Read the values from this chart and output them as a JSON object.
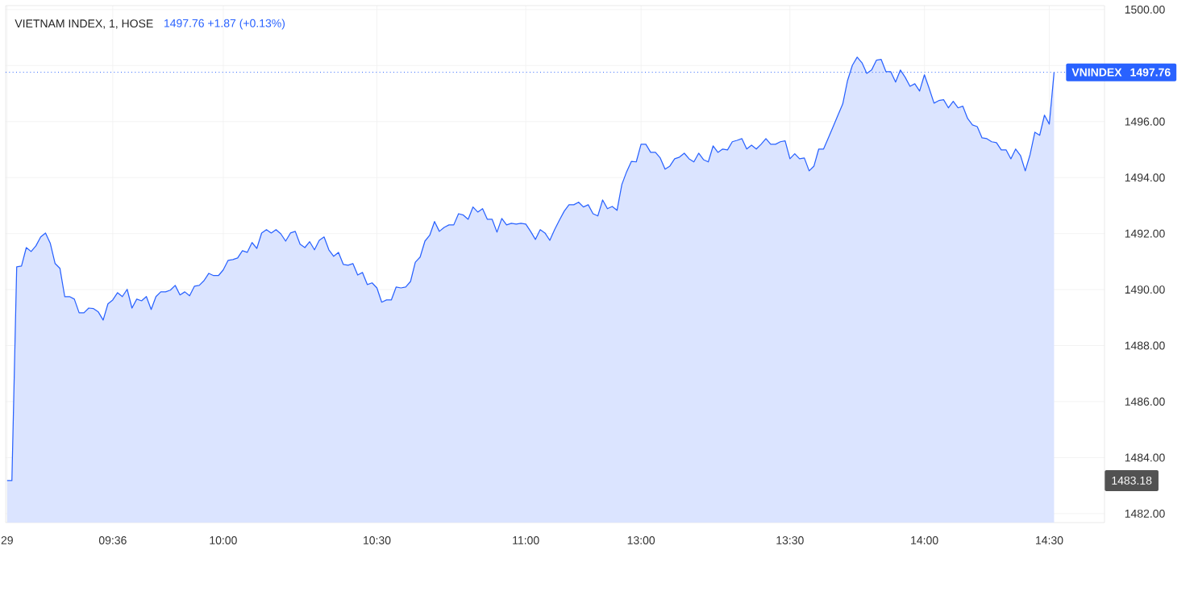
{
  "chart_data": {
    "type": "area",
    "title": "VIETNAM INDEX, 1, HOSE",
    "subtitle": "1497.76  +1.87 (+0.13%)",
    "categories": [
      "29",
      null,
      null,
      null,
      null,
      null,
      null,
      null,
      null,
      null,
      null,
      null,
      null,
      null,
      null,
      null,
      null,
      null,
      null,
      null,
      null,
      null,
      "09:36",
      null,
      null,
      null,
      null,
      null,
      null,
      null,
      null,
      null,
      null,
      null,
      null,
      null,
      null,
      null,
      null,
      null,
      null,
      null,
      null,
      null,
      null,
      "10:00",
      null,
      null,
      null,
      null,
      null,
      null,
      null,
      null,
      null,
      null,
      null,
      null,
      null,
      null,
      null,
      null,
      null,
      null,
      null,
      null,
      null,
      null,
      null,
      null,
      null,
      null,
      null,
      null,
      null,
      null,
      null,
      "10:30",
      null,
      null,
      null,
      null,
      null,
      null,
      null,
      null,
      null,
      null,
      null,
      null,
      null,
      null,
      null,
      null,
      null,
      null,
      null,
      null,
      null,
      null,
      null,
      null,
      null,
      null,
      null,
      null,
      null,
      null,
      "11:00",
      null,
      null,
      null,
      null,
      null,
      null,
      null,
      null,
      null,
      null,
      null,
      null,
      null,
      null,
      null,
      null,
      null,
      null,
      null,
      null,
      null,
      null,
      null,
      "13:00",
      null,
      null,
      null,
      null,
      null,
      null,
      null,
      null,
      null,
      null,
      null,
      null,
      null,
      null,
      null,
      null,
      null,
      null,
      null,
      null,
      null,
      null,
      null,
      null,
      null,
      null,
      null,
      null,
      null,
      null,
      "13:30",
      null,
      null,
      null,
      null,
      null,
      null,
      null,
      null,
      null,
      null,
      null,
      null,
      null,
      null,
      null,
      null,
      null,
      null,
      null,
      null,
      null,
      null,
      null,
      null,
      null,
      null,
      null,
      "14:00",
      null,
      null,
      null,
      null,
      null,
      null,
      null,
      null,
      null,
      null,
      null,
      null,
      null,
      null,
      null,
      null,
      null,
      null,
      null,
      null,
      null,
      null,
      null,
      null,
      null,
      "14:30",
      null
    ],
    "ylim": [
      1481.68,
      1500.14
    ],
    "yticks": [
      {
        "value": 1482,
        "label": "1482.00"
      },
      {
        "value": 1484,
        "label": "1484.00"
      },
      {
        "value": 1486,
        "label": "1486.00"
      },
      {
        "value": 1488,
        "label": "1488.00"
      },
      {
        "value": 1490,
        "label": "1490.00"
      },
      {
        "value": 1492,
        "label": "1492.00"
      },
      {
        "value": 1494,
        "label": "1494.00"
      },
      {
        "value": 1496,
        "label": "1496.00"
      },
      {
        "value": 1498,
        "label": null
      },
      {
        "value": 1500,
        "label": "1500.00"
      }
    ],
    "grid": true,
    "ref_lines": [
      {
        "axis": "y",
        "value": 1497.76,
        "label": "1497.76",
        "line_style": "dotted",
        "color": "#2962ff"
      }
    ],
    "annotations": [
      "1483.18"
    ],
    "series": [
      {
        "name": "VNINDEX",
        "color": "#2962ff",
        "values": [
          1483.18,
          1483.18,
          1490.81,
          1490.84,
          1491.5,
          1491.36,
          1491.56,
          1491.88,
          1492.02,
          1491.65,
          1490.93,
          1490.76,
          1489.75,
          1489.75,
          1489.66,
          1489.17,
          1489.17,
          1489.34,
          1489.32,
          1489.2,
          1488.91,
          1489.49,
          1489.63,
          1489.89,
          1489.75,
          1490.01,
          1489.34,
          1489.66,
          1489.6,
          1489.75,
          1489.29,
          1489.75,
          1489.92,
          1489.92,
          1489.98,
          1490.15,
          1489.81,
          1489.92,
          1489.78,
          1490.12,
          1490.15,
          1490.32,
          1490.58,
          1490.5,
          1490.5,
          1490.7,
          1491.04,
          1491.07,
          1491.13,
          1491.39,
          1491.33,
          1491.68,
          1491.47,
          1492.02,
          1492.14,
          1492.02,
          1492.14,
          1491.99,
          1491.73,
          1492.02,
          1492.08,
          1491.62,
          1491.5,
          1491.71,
          1491.42,
          1491.76,
          1491.88,
          1491.42,
          1491.19,
          1491.33,
          1490.9,
          1490.87,
          1490.93,
          1490.52,
          1490.61,
          1490.18,
          1490.24,
          1490.06,
          1489.55,
          1489.63,
          1489.63,
          1490.09,
          1490.06,
          1490.09,
          1490.29,
          1490.98,
          1491.16,
          1491.73,
          1491.94,
          1492.43,
          1492.08,
          1492.22,
          1492.31,
          1492.31,
          1492.71,
          1492.66,
          1492.51,
          1492.95,
          1492.77,
          1492.89,
          1492.51,
          1492.51,
          1492.05,
          1492.54,
          1492.31,
          1492.37,
          1492.34,
          1492.37,
          1492.34,
          1492.08,
          1491.79,
          1492.14,
          1492.02,
          1491.76,
          1492.14,
          1492.48,
          1492.8,
          1493.03,
          1493.03,
          1493.12,
          1492.95,
          1493.03,
          1492.71,
          1492.63,
          1493.2,
          1492.89,
          1492.97,
          1492.83,
          1493.75,
          1494.21,
          1494.58,
          1494.56,
          1495.19,
          1495.19,
          1494.9,
          1494.9,
          1494.7,
          1494.3,
          1494.41,
          1494.67,
          1494.73,
          1494.87,
          1494.67,
          1494.56,
          1494.87,
          1494.64,
          1494.56,
          1495.13,
          1494.9,
          1495.02,
          1494.99,
          1495.28,
          1495.33,
          1495.39,
          1495.02,
          1495.16,
          1495.02,
          1495.19,
          1495.39,
          1495.19,
          1495.19,
          1495.28,
          1495.31,
          1494.67,
          1494.85,
          1494.67,
          1494.7,
          1494.24,
          1494.41,
          1495.02,
          1495.02,
          1495.42,
          1495.82,
          1496.23,
          1496.63,
          1497.47,
          1498.01,
          1498.3,
          1498.1,
          1497.72,
          1497.84,
          1498.19,
          1498.22,
          1497.78,
          1497.78,
          1497.41,
          1497.84,
          1497.58,
          1497.26,
          1497.35,
          1497.09,
          1497.67,
          1497.18,
          1496.66,
          1496.75,
          1496.78,
          1496.49,
          1496.72,
          1496.49,
          1496.55,
          1496.11,
          1495.88,
          1495.82,
          1495.42,
          1495.39,
          1495.28,
          1495.25,
          1494.99,
          1494.99,
          1494.67,
          1495.02,
          1494.79,
          1494.24,
          1494.82,
          1495.62,
          1495.51,
          1496.23,
          1495.91,
          1497.76
        ]
      }
    ]
  }
}
